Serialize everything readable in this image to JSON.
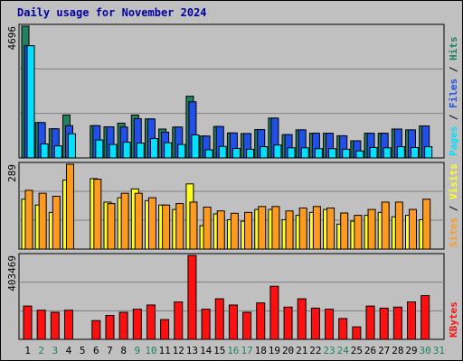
{
  "title": "Daily usage for November 2024",
  "colors": {
    "pages": "#00e0ff",
    "files": "#2050e8",
    "hits": "#208060",
    "visits": "#ffff20",
    "sites": "#ff9a20",
    "kbytes": "#ff1010",
    "weekend_label": "#208060"
  },
  "chart_data": [
    {
      "type": "bar",
      "title": "Daily usage for November 2024",
      "right_label": [
        "Pages",
        "Files",
        "Hits"
      ],
      "ymax_label": "4696",
      "ylim": [
        0,
        4696
      ],
      "categories": [
        "1",
        "2",
        "3",
        "4",
        "5",
        "6",
        "7",
        "8",
        "9",
        "10",
        "11",
        "12",
        "13",
        "14",
        "15",
        "16",
        "17",
        "18",
        "19",
        "20",
        "21",
        "22",
        "23",
        "24",
        "25",
        "26",
        "27",
        "28",
        "29",
        "30",
        "31"
      ],
      "series": [
        {
          "name": "Hits",
          "values": [
            4696,
            1260,
            1040,
            1530,
            0,
            1150,
            1110,
            1240,
            1530,
            1390,
            1030,
            1100,
            2200,
            780,
            1120,
            890,
            870,
            1010,
            1420,
            830,
            1000,
            880,
            880,
            790,
            610,
            880,
            880,
            1030,
            1000,
            1140,
            0
          ]
        },
        {
          "name": "Files",
          "values": [
            4000,
            1260,
            1040,
            1150,
            0,
            1150,
            1110,
            1100,
            1400,
            1390,
            920,
            1100,
            2000,
            780,
            1120,
            890,
            870,
            1010,
            1420,
            830,
            1000,
            880,
            880,
            790,
            610,
            880,
            880,
            1030,
            1000,
            1140,
            0
          ]
        },
        {
          "name": "Pages",
          "values": [
            4000,
            500,
            430,
            860,
            0,
            640,
            480,
            560,
            530,
            690,
            540,
            480,
            820,
            290,
            410,
            340,
            310,
            400,
            460,
            360,
            360,
            330,
            330,
            310,
            250,
            370,
            360,
            400,
            370,
            400,
            0
          ]
        }
      ]
    },
    {
      "type": "bar",
      "right_label": [
        "Sites",
        "Visits"
      ],
      "ymax_label": "289",
      "ylim": [
        0,
        289
      ],
      "series": [
        {
          "name": "Visits",
          "values": [
            170,
            150,
            125,
            235,
            0,
            240,
            160,
            175,
            205,
            165,
            150,
            135,
            222,
            80,
            120,
            100,
            95,
            135,
            135,
            100,
            115,
            125,
            135,
            85,
            95,
            115,
            125,
            110,
            115,
            100,
            0
          ]
        },
        {
          "name": "Sites",
          "values": [
            200,
            190,
            180,
            289,
            0,
            238,
            155,
            190,
            190,
            175,
            150,
            155,
            160,
            143,
            130,
            122,
            125,
            145,
            145,
            130,
            140,
            145,
            140,
            123,
            115,
            135,
            160,
            160,
            135,
            170,
            0
          ]
        }
      ]
    },
    {
      "type": "bar",
      "right_label": [
        "KBytes"
      ],
      "ymax_label": "403469",
      "ylim": [
        0,
        403469
      ],
      "series": [
        {
          "name": "KBytes",
          "values": [
            160000,
            140000,
            130000,
            140000,
            0,
            90000,
            115000,
            130000,
            145000,
            165000,
            95000,
            180000,
            403469,
            145000,
            195000,
            165000,
            130000,
            175000,
            255000,
            155000,
            195000,
            150000,
            145000,
            100000,
            60000,
            160000,
            150000,
            155000,
            180000,
            210000,
            0
          ]
        }
      ]
    }
  ]
}
